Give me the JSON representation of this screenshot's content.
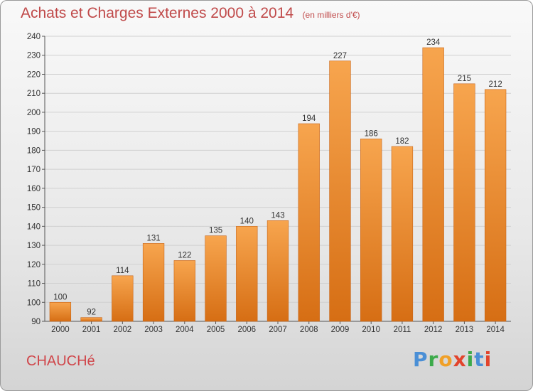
{
  "header": {
    "title": "Achats et Charges Externes 2000 à 2014",
    "subtitle": "(en milliers d'€)"
  },
  "footer": {
    "commune": "CHAUCHé",
    "logo": "Proxiti"
  },
  "colors": {
    "bar_light": "#f7a54e",
    "bar_dark": "#d66e14",
    "title": "#c04a4a",
    "grid": "#d0d0d0"
  },
  "chart_data": {
    "type": "bar",
    "title": "Achats et Charges Externes 2000 à 2014",
    "subtitle": "(en milliers d'€)",
    "xlabel": "",
    "ylabel": "",
    "categories": [
      "2000",
      "2001",
      "2002",
      "2003",
      "2004",
      "2005",
      "2006",
      "2007",
      "2008",
      "2009",
      "2010",
      "2011",
      "2012",
      "2013",
      "2014"
    ],
    "values": [
      100,
      92,
      114,
      131,
      122,
      135,
      140,
      143,
      194,
      227,
      186,
      182,
      234,
      215,
      212
    ],
    "ylim": [
      90,
      240
    ],
    "yticks": [
      90,
      100,
      110,
      120,
      130,
      140,
      150,
      160,
      170,
      180,
      190,
      200,
      210,
      220,
      230,
      240
    ],
    "grid": true,
    "legend": "none"
  }
}
